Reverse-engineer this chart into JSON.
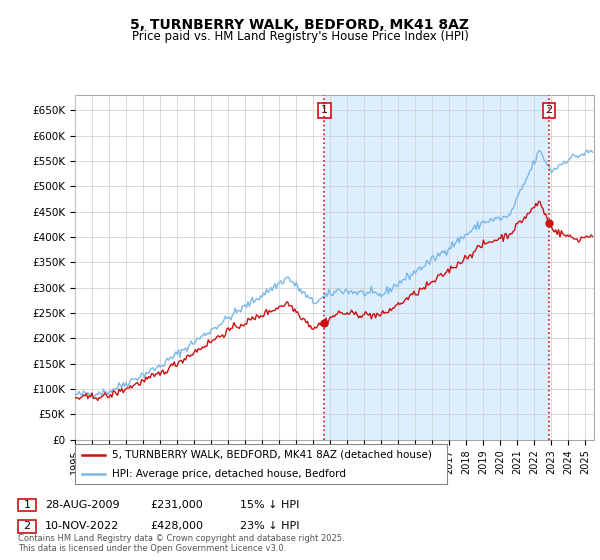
{
  "title": "5, TURNBERRY WALK, BEDFORD, MK41 8AZ",
  "subtitle": "Price paid vs. HM Land Registry's House Price Index (HPI)",
  "ylim": [
    0,
    680000
  ],
  "yticks": [
    0,
    50000,
    100000,
    150000,
    200000,
    250000,
    300000,
    350000,
    400000,
    450000,
    500000,
    550000,
    600000,
    650000
  ],
  "ytick_labels": [
    "£0",
    "£50K",
    "£100K",
    "£150K",
    "£200K",
    "£250K",
    "£300K",
    "£350K",
    "£400K",
    "£450K",
    "£500K",
    "£550K",
    "£600K",
    "£650K"
  ],
  "hpi_color": "#7ab8e8",
  "price_color": "#cc1111",
  "vline_color": "#cc1111",
  "sale1_year": 2009.66,
  "sale2_year": 2022.86,
  "sale1_price": 231000,
  "sale2_price": 428000,
  "fill_color": "#ddeeff",
  "legend_line1": "5, TURNBERRY WALK, BEDFORD, MK41 8AZ (detached house)",
  "legend_line2": "HPI: Average price, detached house, Bedford",
  "table_row1": [
    "1",
    "28-AUG-2009",
    "£231,000",
    "15% ↓ HPI"
  ],
  "table_row2": [
    "2",
    "10-NOV-2022",
    "£428,000",
    "23% ↓ HPI"
  ],
  "footer": "Contains HM Land Registry data © Crown copyright and database right 2025.\nThis data is licensed under the Open Government Licence v3.0.",
  "background_color": "#ffffff",
  "grid_color": "#cccccc"
}
